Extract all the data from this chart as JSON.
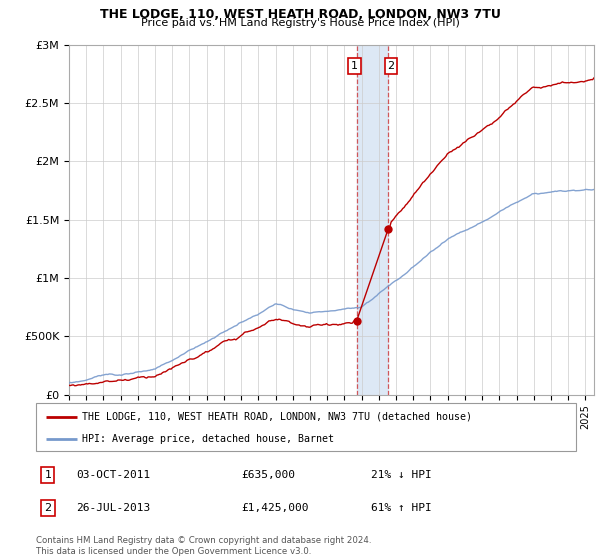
{
  "title": "THE LODGE, 110, WEST HEATH ROAD, LONDON, NW3 7TU",
  "subtitle": "Price paid vs. HM Land Registry's House Price Index (HPI)",
  "legend_line1": "THE LODGE, 110, WEST HEATH ROAD, LONDON, NW3 7TU (detached house)",
  "legend_line2": "HPI: Average price, detached house, Barnet",
  "transaction1_date": "03-OCT-2011",
  "transaction1_price": "£635,000",
  "transaction1_hpi": "21% ↓ HPI",
  "transaction2_date": "26-JUL-2013",
  "transaction2_price": "£1,425,000",
  "transaction2_hpi": "61% ↑ HPI",
  "footer": "Contains HM Land Registry data © Crown copyright and database right 2024.\nThis data is licensed under the Open Government Licence v3.0.",
  "hpi_color": "#7799cc",
  "price_color": "#bb0000",
  "highlight_color": "#dde8f5",
  "ylim": [
    0,
    3000000
  ],
  "yticks": [
    0,
    500000,
    1000000,
    1500000,
    2000000,
    2500000,
    3000000
  ],
  "ytick_labels": [
    "£0",
    "£500K",
    "£1M",
    "£1.5M",
    "£2M",
    "£2.5M",
    "£3M"
  ],
  "start_year": 1995,
  "end_year": 2025,
  "t1_year": 2011.75,
  "t2_year": 2013.55,
  "t1_price": 635000,
  "t2_price": 1425000
}
